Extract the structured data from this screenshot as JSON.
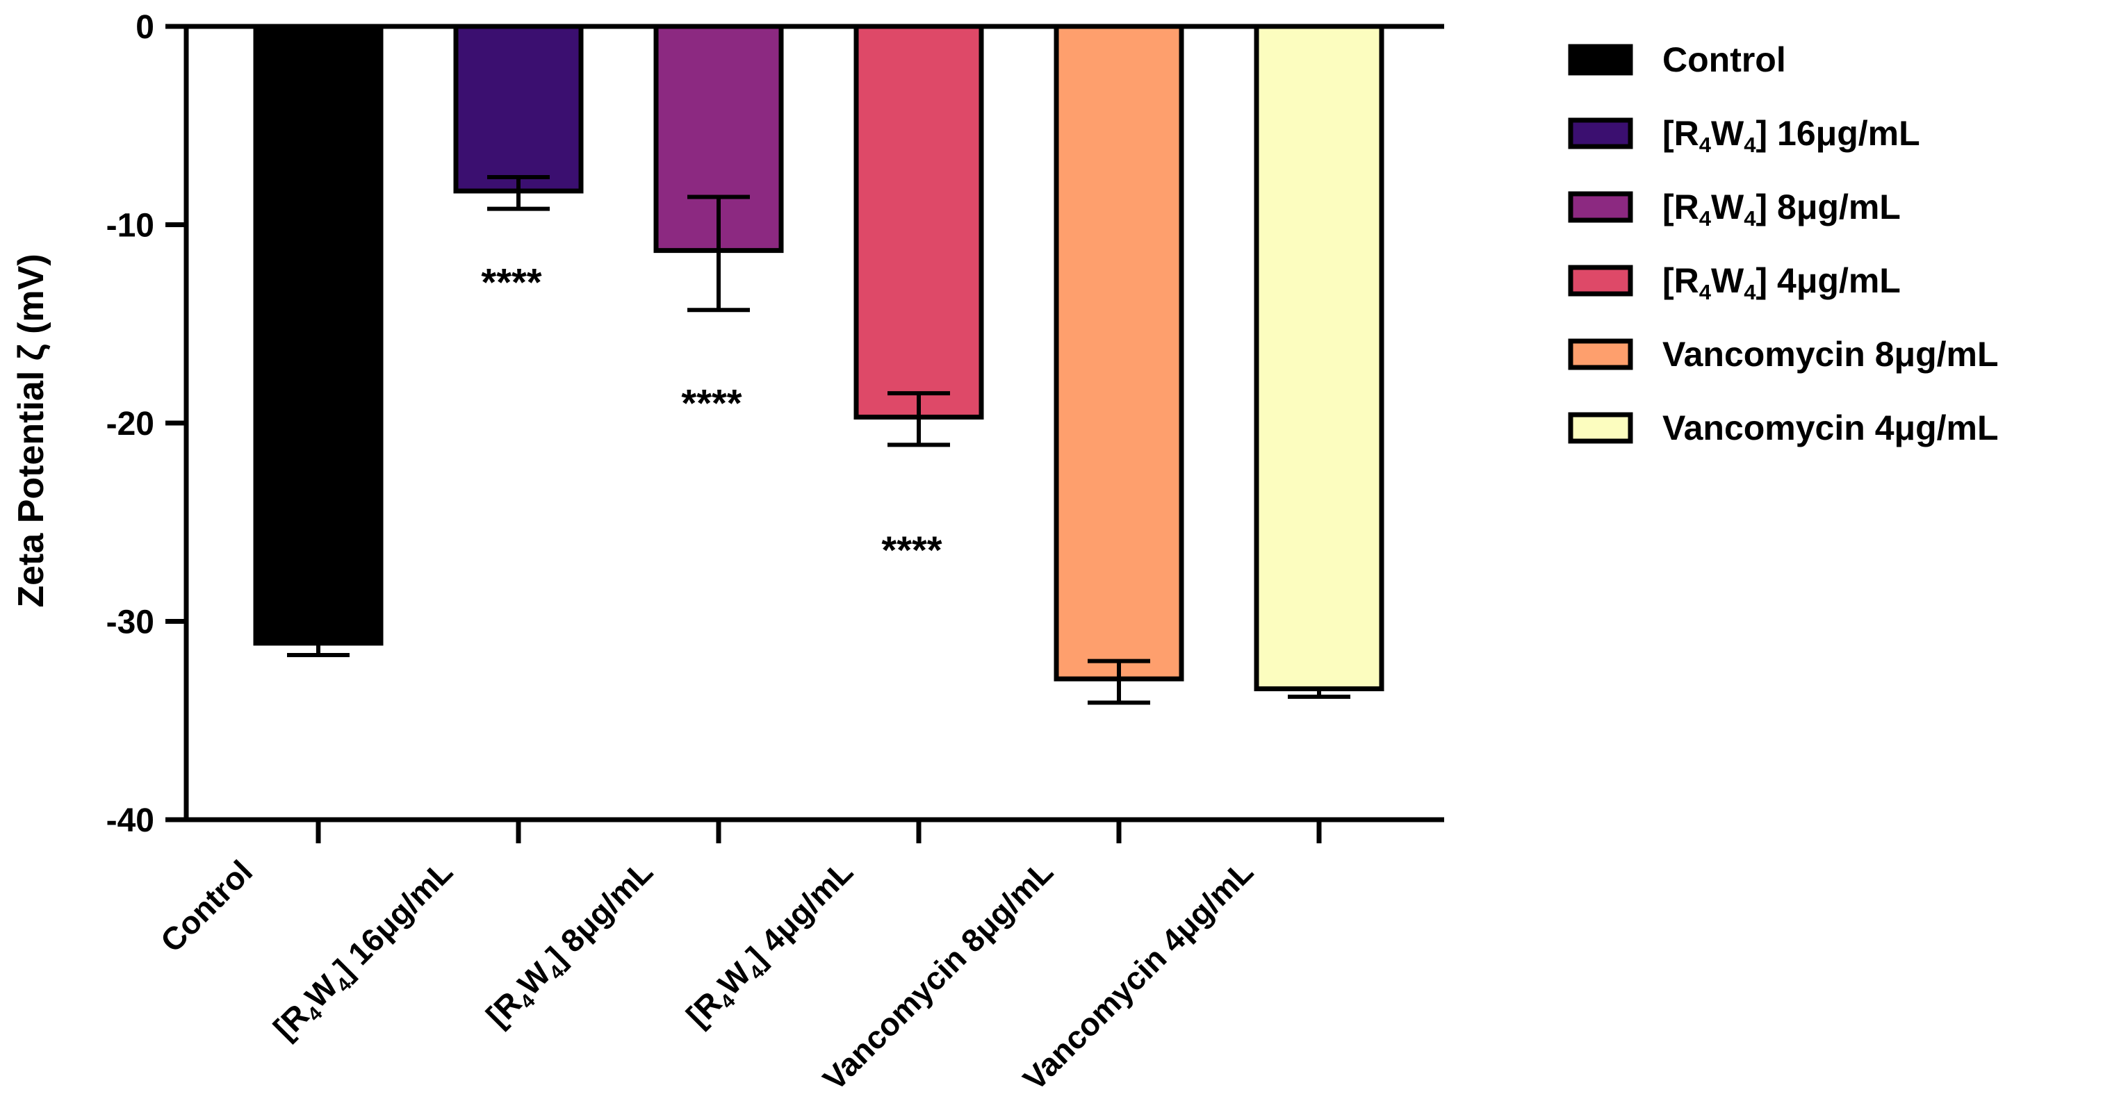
{
  "chart_data": {
    "type": "bar",
    "title": "",
    "xlabel": "",
    "ylabel": "Zeta Potential ζ (mV)",
    "ylim": [
      -40,
      0
    ],
    "yticks": [
      0,
      -10,
      -20,
      -30,
      -40
    ],
    "ytick_labels": [
      "0",
      "-10",
      "-20",
      "-30",
      "-40"
    ],
    "grid": false,
    "legend_position": "right",
    "categories": [
      {
        "pre": "",
        "r": "",
        "mid": "",
        "w": "",
        "post": "Control",
        "label": "Control"
      },
      {
        "pre": "[R",
        "r": "4",
        "mid": "W",
        "w": "4",
        "post": "] 16μg/mL",
        "label": "[R4W4] 16μg/mL"
      },
      {
        "pre": "[R",
        "r": "4",
        "mid": "W",
        "w": "4",
        "post": "] 8μg/mL",
        "label": "[R4W4] 8μg/mL"
      },
      {
        "pre": "[R",
        "r": "4",
        "mid": "W",
        "w": "4",
        "post": "] 4μg/mL",
        "label": "[R4W4] 4μg/mL"
      },
      {
        "pre": "",
        "r": "",
        "mid": "",
        "w": "",
        "post": "Vancomycin 8μg/mL",
        "label": "Vancomycin 8μg/mL"
      },
      {
        "pre": "",
        "r": "",
        "mid": "",
        "w": "",
        "post": "Vancomycin 4μg/mL",
        "label": "Vancomycin 4μg/mL"
      }
    ],
    "values": [
      -31.1,
      -8.3,
      -11.3,
      -19.7,
      -32.9,
      -33.4
    ],
    "error_upper": [
      -30.9,
      -7.6,
      -8.6,
      -18.5,
      -32.0,
      -33.3
    ],
    "error_lower": [
      -31.7,
      -9.2,
      -14.3,
      -21.1,
      -34.1,
      -33.8
    ],
    "colors": [
      "#000000",
      "#3b0f70",
      "#8c2981",
      "#de4968",
      "#fe9f6d",
      "#fcfdbf"
    ],
    "significance": [
      "",
      "****",
      "****",
      "****",
      "",
      ""
    ],
    "significance_y": [
      null,
      -12.8,
      -18.9,
      -26.3,
      null,
      null
    ],
    "legend": [
      {
        "pre": "",
        "r": "",
        "mid": "",
        "w": "",
        "post": "Control"
      },
      {
        "pre": "[R",
        "r": "4",
        "mid": "W",
        "w": "4",
        "post": "] 16μg/mL"
      },
      {
        "pre": "[R",
        "r": "4",
        "mid": "W",
        "w": "4",
        "post": "] 8μg/mL"
      },
      {
        "pre": "[R",
        "r": "4",
        "mid": "W",
        "w": "4",
        "post": "] 4μg/mL"
      },
      {
        "pre": "",
        "r": "",
        "mid": "",
        "w": "",
        "post": "Vancomycin 8μg/mL"
      },
      {
        "pre": "",
        "r": "",
        "mid": "",
        "w": "",
        "post": "Vancomycin 4μg/mL"
      }
    ]
  }
}
